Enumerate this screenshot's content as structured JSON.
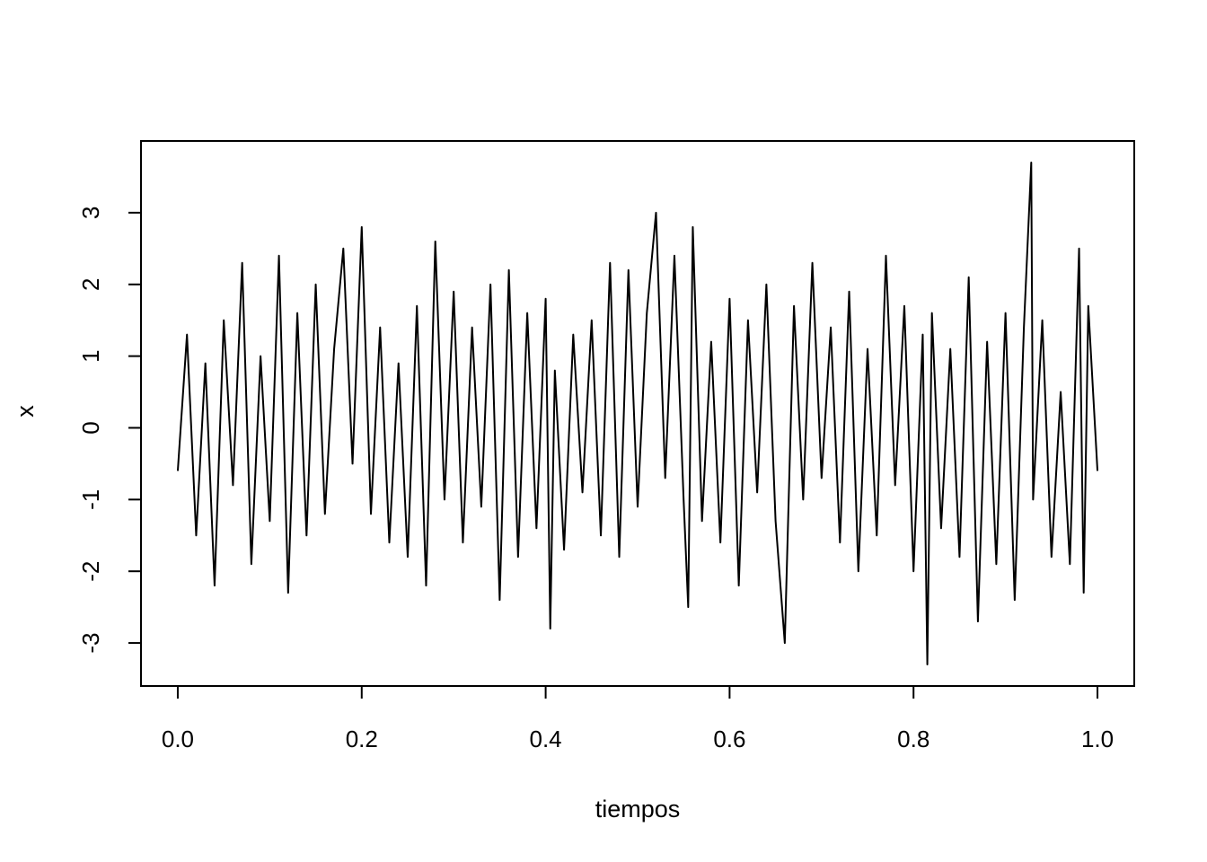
{
  "chart_data": {
    "type": "line",
    "title": "",
    "xlabel": "tiempos",
    "ylabel": "x",
    "xlim": [
      -0.04,
      1.04
    ],
    "ylim": [
      -3.6,
      4.0
    ],
    "x_ticks": [
      0.0,
      0.2,
      0.4,
      0.6,
      0.8,
      1.0
    ],
    "x_tick_labels": [
      "0.0",
      "0.2",
      "0.4",
      "0.6",
      "0.8",
      "1.0"
    ],
    "y_ticks": [
      -3,
      -2,
      -1,
      0,
      1,
      2,
      3
    ],
    "y_tick_labels": [
      "-3",
      "-2",
      "-1",
      "0",
      "1",
      "2",
      "3"
    ],
    "grid": false,
    "legend": "none",
    "line_color": "#000000",
    "series": [
      {
        "x": [
          0.0,
          0.01,
          0.02,
          0.03,
          0.04,
          0.05,
          0.06,
          0.07,
          0.08,
          0.09,
          0.1,
          0.11,
          0.12,
          0.13,
          0.14,
          0.15,
          0.16,
          0.17,
          0.18,
          0.19,
          0.2,
          0.21,
          0.22,
          0.23,
          0.24,
          0.25,
          0.26,
          0.27,
          0.28,
          0.29,
          0.3,
          0.31,
          0.32,
          0.33,
          0.34,
          0.35,
          0.36,
          0.37,
          0.38,
          0.39,
          0.4,
          0.405,
          0.41,
          0.42,
          0.43,
          0.44,
          0.45,
          0.46,
          0.47,
          0.48,
          0.49,
          0.5,
          0.51,
          0.52,
          0.53,
          0.54,
          0.55,
          0.555,
          0.56,
          0.57,
          0.58,
          0.59,
          0.6,
          0.61,
          0.62,
          0.63,
          0.64,
          0.65,
          0.66,
          0.67,
          0.68,
          0.69,
          0.7,
          0.71,
          0.72,
          0.73,
          0.74,
          0.75,
          0.76,
          0.77,
          0.78,
          0.79,
          0.8,
          0.81,
          0.815,
          0.82,
          0.83,
          0.84,
          0.85,
          0.86,
          0.87,
          0.88,
          0.89,
          0.9,
          0.91,
          0.92,
          0.928,
          0.93,
          0.94,
          0.95,
          0.96,
          0.97,
          0.98,
          0.985,
          0.99,
          1.0
        ],
        "y": [
          -0.6,
          1.3,
          -1.5,
          0.9,
          -2.2,
          1.5,
          -0.8,
          2.3,
          -1.9,
          1.0,
          -1.3,
          2.4,
          -2.3,
          1.6,
          -1.5,
          2.0,
          -1.2,
          1.1,
          2.5,
          -0.5,
          2.8,
          -1.2,
          1.4,
          -1.6,
          0.9,
          -1.8,
          1.7,
          -2.2,
          2.6,
          -1.0,
          1.9,
          -1.6,
          1.4,
          -1.1,
          2.0,
          -2.4,
          2.2,
          -1.8,
          1.6,
          -1.4,
          1.8,
          -2.8,
          0.8,
          -1.7,
          1.3,
          -0.9,
          1.5,
          -1.5,
          2.3,
          -1.8,
          2.2,
          -1.1,
          1.6,
          3.0,
          -0.7,
          2.4,
          -1.0,
          -2.5,
          2.8,
          -1.3,
          1.2,
          -1.6,
          1.8,
          -2.2,
          1.5,
          -0.9,
          2.0,
          -1.3,
          -3.0,
          1.7,
          -1.0,
          2.3,
          -0.7,
          1.4,
          -1.6,
          1.9,
          -2.0,
          1.1,
          -1.5,
          2.4,
          -0.8,
          1.7,
          -2.0,
          1.3,
          -3.3,
          1.6,
          -1.4,
          1.1,
          -1.8,
          2.1,
          -2.7,
          1.2,
          -1.9,
          1.6,
          -2.4,
          1.4,
          3.7,
          -1.0,
          1.5,
          -1.8,
          0.5,
          -1.9,
          2.5,
          -2.3,
          1.7,
          -0.6
        ]
      }
    ]
  }
}
